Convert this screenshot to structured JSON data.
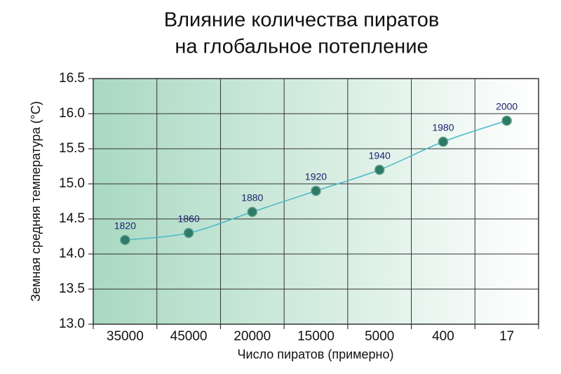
{
  "chart_data": {
    "type": "line",
    "title": [
      "Влияние количества пиратов",
      "на глобальное потепление"
    ],
    "x_label": "Число пиратов (примерно)",
    "y_label": "Земная средняя температура (°C)",
    "categories": [
      "35000",
      "45000",
      "20000",
      "15000",
      "5000",
      "400",
      "17"
    ],
    "values": [
      14.2,
      14.3,
      14.6,
      14.9,
      15.2,
      15.6,
      15.9
    ],
    "annotations": [
      "1820",
      "1860",
      "1880",
      "1920",
      "1940",
      "1980",
      "2000"
    ],
    "color": "#4bb8c9",
    "marker_color": "#2f7a66",
    "ylim": [
      13.0,
      16.5
    ],
    "yticks": [
      {
        "value": 13.0,
        "label": "13.0"
      },
      {
        "value": 13.5,
        "label": "13.5"
      },
      {
        "value": 14.0,
        "label": "14.0"
      },
      {
        "value": 14.5,
        "label": "14.5"
      },
      {
        "value": 15.0,
        "label": "15.0"
      },
      {
        "value": 15.5,
        "label": "15.5"
      },
      {
        "value": 16.0,
        "label": "16.0"
      },
      16.5
    ],
    "grid": true
  }
}
